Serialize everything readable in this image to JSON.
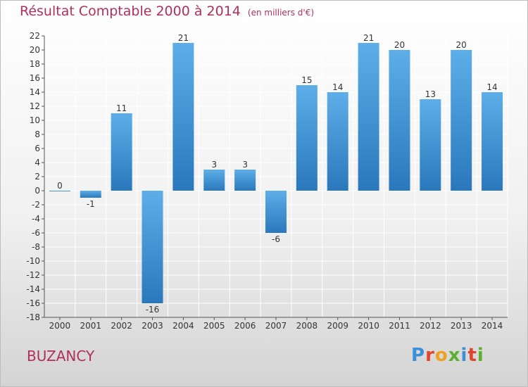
{
  "header": {
    "title": "Résultat Comptable 2000 à 2014",
    "unit": "(en milliers d'€)"
  },
  "footer": {
    "commune": "BUZANCY"
  },
  "brand": {
    "name": "Proxiti",
    "letter_colors": [
      "#3a8fd8",
      "#e0442c",
      "#f0a020",
      "#5bb030",
      "#3a8fd8",
      "#e0442c",
      "#5bb030"
    ]
  },
  "colors": {
    "title": "#b0305a",
    "bar_light": "#5daee8",
    "bar_dark": "#2a78bc",
    "grid": "#ffffff",
    "text": "#333333"
  },
  "chart_data": {
    "type": "bar",
    "title": "Résultat Comptable 2000 à 2014",
    "xlabel": "",
    "ylabel": "",
    "categories": [
      "2000",
      "2001",
      "2002",
      "2003",
      "2004",
      "2005",
      "2006",
      "2007",
      "2008",
      "2009",
      "2010",
      "2011",
      "2012",
      "2013",
      "2014"
    ],
    "values": [
      0,
      -1,
      11,
      -16,
      21,
      3,
      3,
      -6,
      15,
      14,
      21,
      20,
      13,
      20,
      14
    ],
    "ylim": [
      -18,
      22
    ],
    "yticks": [
      22,
      20,
      18,
      16,
      14,
      12,
      10,
      8,
      6,
      4,
      2,
      0,
      -2,
      -4,
      -6,
      -8,
      -10,
      -12,
      -14,
      -16,
      -18
    ],
    "grid": true,
    "legend": "none"
  }
}
